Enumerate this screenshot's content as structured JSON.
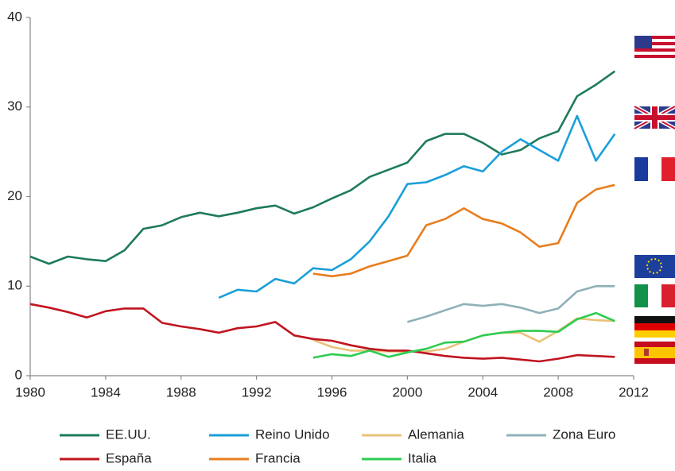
{
  "chart_data": {
    "type": "line",
    "x": [
      1980,
      1981,
      1982,
      1983,
      1984,
      1985,
      1986,
      1987,
      1988,
      1989,
      1990,
      1991,
      1992,
      1993,
      1994,
      1995,
      1996,
      1997,
      1998,
      1999,
      2000,
      2001,
      2002,
      2003,
      2004,
      2005,
      2006,
      2007,
      2008,
      2009,
      2010,
      2011
    ],
    "xlim": [
      1980,
      2012
    ],
    "xticks": [
      1980,
      1984,
      1988,
      1992,
      1996,
      2000,
      2004,
      2008,
      2012
    ],
    "ylim": [
      0,
      40
    ],
    "yticks": [
      0,
      10,
      20,
      30,
      40
    ],
    "grid": false,
    "legend": "bottom",
    "series": [
      {
        "name": "EE.UU.",
        "color": "#1e7b5a",
        "values": [
          13.3,
          12.5,
          13.3,
          13.0,
          12.8,
          14.0,
          16.4,
          16.8,
          17.7,
          18.2,
          17.8,
          18.2,
          18.7,
          19.0,
          18.1,
          18.8,
          19.8,
          20.7,
          22.2,
          23.0,
          23.8,
          26.2,
          27.0,
          27.0,
          26.0,
          24.7,
          25.2,
          26.5,
          27.3,
          31.2,
          32.5,
          34.0
        ]
      },
      {
        "name": "Reino Unido",
        "color": "#1a9fd9",
        "values": [
          null,
          null,
          null,
          null,
          null,
          null,
          null,
          null,
          null,
          null,
          8.7,
          9.6,
          9.4,
          10.8,
          10.3,
          12.0,
          11.8,
          13.0,
          15.0,
          17.8,
          21.4,
          21.6,
          22.4,
          23.4,
          22.8,
          25.0,
          26.4,
          25.2,
          24.0,
          29.0,
          24.0,
          27.0
        ]
      },
      {
        "name": "Alemania",
        "color": "#e8c27a",
        "values": [
          null,
          null,
          null,
          null,
          null,
          null,
          null,
          null,
          null,
          null,
          null,
          null,
          null,
          null,
          null,
          4.0,
          3.2,
          2.8,
          2.8,
          2.7,
          2.7,
          2.7,
          3.0,
          3.8,
          4.5,
          4.8,
          4.8,
          3.8,
          5.0,
          6.4,
          6.2,
          6.1
        ]
      },
      {
        "name": "Zona Euro",
        "color": "#8fb0b8",
        "values": [
          null,
          null,
          null,
          null,
          null,
          null,
          null,
          null,
          null,
          null,
          null,
          null,
          null,
          null,
          null,
          null,
          null,
          null,
          null,
          null,
          6.0,
          6.6,
          7.3,
          8.0,
          7.8,
          8.0,
          7.6,
          7.0,
          7.5,
          9.4,
          10.0,
          10.0
        ]
      },
      {
        "name": "España",
        "color": "#c0141e",
        "values": [
          8.0,
          7.6,
          7.1,
          6.5,
          7.2,
          7.5,
          7.5,
          5.9,
          5.5,
          5.2,
          4.8,
          5.3,
          5.5,
          6.0,
          4.5,
          4.1,
          3.9,
          3.4,
          3.0,
          2.8,
          2.8,
          2.5,
          2.2,
          2.0,
          1.9,
          2.0,
          1.8,
          1.6,
          1.9,
          2.3,
          2.2,
          2.1
        ]
      },
      {
        "name": "Francia",
        "color": "#e87d1e",
        "values": [
          null,
          null,
          null,
          null,
          null,
          null,
          null,
          null,
          null,
          null,
          null,
          null,
          null,
          null,
          null,
          11.4,
          11.1,
          11.4,
          12.2,
          12.8,
          13.4,
          16.8,
          17.5,
          18.7,
          17.5,
          17.0,
          16.0,
          14.4,
          14.8,
          19.3,
          20.8,
          21.3
        ]
      },
      {
        "name": "Italia",
        "color": "#2ecc52",
        "values": [
          null,
          null,
          null,
          null,
          null,
          null,
          null,
          null,
          null,
          null,
          null,
          null,
          null,
          null,
          null,
          2.0,
          2.4,
          2.2,
          2.8,
          2.1,
          2.6,
          3.0,
          3.7,
          3.8,
          4.5,
          4.8,
          5.0,
          5.0,
          4.9,
          6.3,
          7.0,
          6.1
        ]
      }
    ]
  }
}
